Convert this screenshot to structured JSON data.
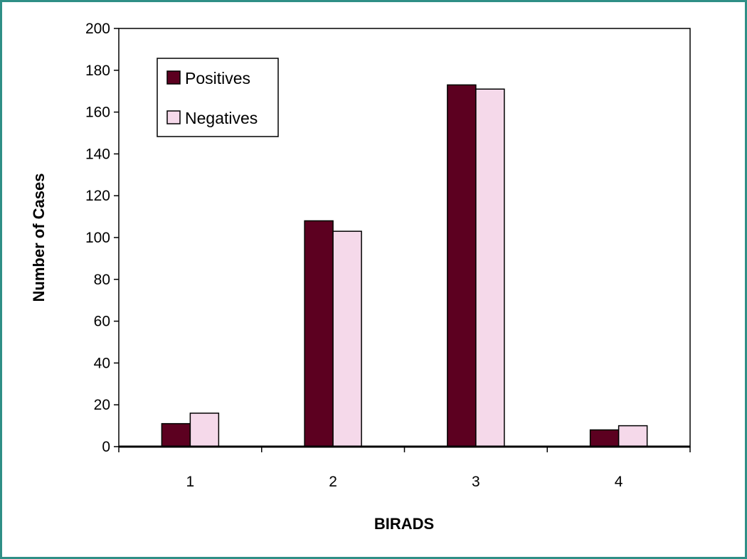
{
  "chart_data": {
    "type": "bar",
    "categories": [
      "1",
      "2",
      "3",
      "4"
    ],
    "series": [
      {
        "name": "Positives",
        "values": [
          11,
          108,
          173,
          8
        ],
        "color": "#5c0020"
      },
      {
        "name": "Negatives",
        "values": [
          16,
          103,
          171,
          10
        ],
        "color": "#f5d9ea"
      }
    ],
    "title": "",
    "xlabel": "BIRADS",
    "ylabel": "Number of Cases",
    "ylim": [
      0,
      200
    ],
    "yticks": [
      0,
      20,
      40,
      60,
      80,
      100,
      120,
      140,
      160,
      180,
      200
    ],
    "grid": false,
    "legend_position": "top-left",
    "bar_edge_color": "#000000",
    "frame_color": "#2f8f86"
  }
}
